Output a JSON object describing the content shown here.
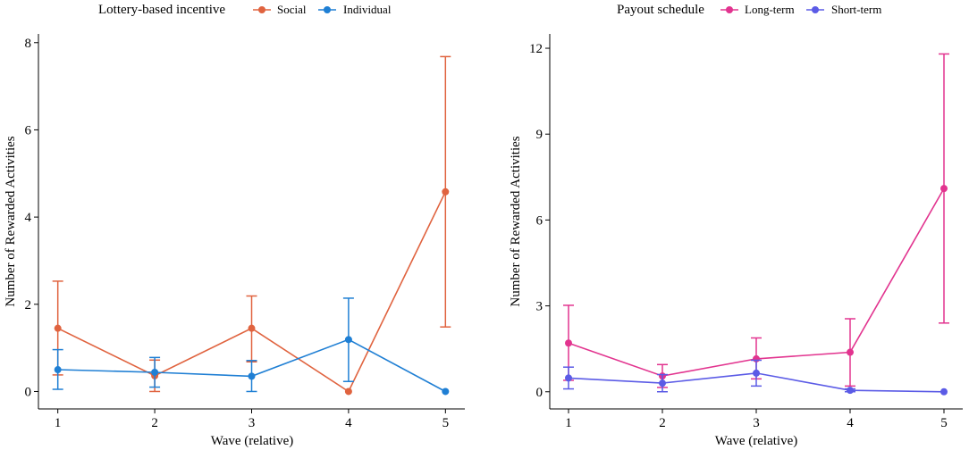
{
  "chart_data": [
    {
      "type": "line",
      "legend_title": "Lottery-based incentive",
      "legend_position": "top",
      "xlabel": "Wave (relative)",
      "ylabel": "Number of Rewarded Activities",
      "x": [
        1,
        2,
        3,
        4,
        5
      ],
      "xticks": [
        "1",
        "2",
        "3",
        "4",
        "5"
      ],
      "xlim": [
        0.8,
        5.2
      ],
      "ylim": [
        -0.4,
        8.2
      ],
      "yticks": [
        0,
        2,
        4,
        6,
        8
      ],
      "ytick_labels": [
        "0",
        "2",
        "4",
        "6",
        "8"
      ],
      "grid": false,
      "series": [
        {
          "name": "Social",
          "color": "#e0633f",
          "values": [
            1.45,
            0.36,
            1.45,
            0.0,
            4.58
          ],
          "err_low": [
            0.38,
            0.0,
            0.68,
            0.0,
            1.48
          ],
          "err_high": [
            2.53,
            0.72,
            2.19,
            0.0,
            7.68
          ]
        },
        {
          "name": "Individual",
          "color": "#1f7fd4",
          "values": [
            0.5,
            0.44,
            0.35,
            1.19,
            0.0
          ],
          "err_low": [
            0.05,
            0.1,
            0.0,
            0.23,
            0.0
          ],
          "err_high": [
            0.96,
            0.78,
            0.71,
            2.14,
            0.0
          ]
        }
      ]
    },
    {
      "type": "line",
      "legend_title": "Payout schedule",
      "legend_position": "top",
      "xlabel": "Wave (relative)",
      "ylabel": "Number of Rewarded Activities",
      "x": [
        1,
        2,
        3,
        4,
        5
      ],
      "xticks": [
        "1",
        "2",
        "3",
        "4",
        "5"
      ],
      "xlim": [
        0.8,
        5.2
      ],
      "ylim": [
        -0.6,
        12.5
      ],
      "yticks": [
        0,
        3,
        6,
        9,
        12
      ],
      "ytick_labels": [
        "0",
        "3",
        "6",
        "9",
        "12"
      ],
      "grid": false,
      "series": [
        {
          "name": "Long-term",
          "color": "#e2348f",
          "values": [
            1.7,
            0.55,
            1.15,
            1.38,
            7.1
          ],
          "err_low": [
            0.4,
            0.15,
            0.45,
            0.2,
            2.4
          ],
          "err_high": [
            3.02,
            0.95,
            1.88,
            2.55,
            11.8
          ]
        },
        {
          "name": "Short-term",
          "color": "#5b5be6",
          "values": [
            0.48,
            0.3,
            0.65,
            0.05,
            0.0
          ],
          "err_low": [
            0.1,
            0.0,
            0.2,
            0.0,
            0.0
          ],
          "err_high": [
            0.86,
            0.6,
            1.1,
            0.1,
            0.0
          ]
        }
      ]
    }
  ]
}
